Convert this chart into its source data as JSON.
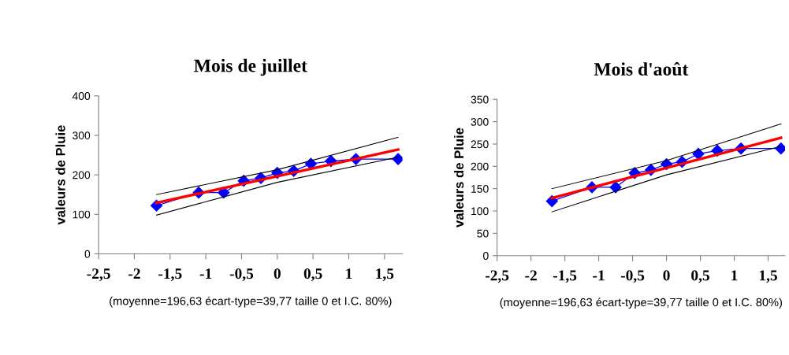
{
  "chart_data": [
    {
      "type": "line",
      "title": "Mois de juillet",
      "ylabel": "valeurs de Pluie",
      "xlim": [
        -2.5,
        1.75
      ],
      "xticks": [
        {
          "value": -2.5,
          "label": "-2,5"
        },
        -2,
        {
          "value": -1.5,
          "label": "-1,5"
        },
        -1,
        {
          "value": -0.5,
          "label": "-0,5"
        },
        0,
        {
          "value": 0.5,
          "label": "0,5"
        },
        1,
        {
          "value": 1.5,
          "label": "1,5"
        }
      ],
      "ylim": [
        0,
        400
      ],
      "yticks": [
        0,
        100,
        200,
        300,
        400
      ],
      "grid": false,
      "legend": false,
      "series": [
        {
          "x": [
            -1.69,
            -1.1,
            -0.75,
            -0.47,
            -0.23,
            0,
            0.23,
            0.47,
            0.75,
            1.1,
            1.69
          ],
          "values": [
            122,
            155,
            155,
            185,
            192,
            205,
            210,
            228,
            235,
            240,
            240
          ],
          "color": "#0000ff",
          "marker": "diamond",
          "line_style": "solid"
        },
        {
          "x": [
            -1.69,
            1.69
          ],
          "values": [
            129,
            264
          ],
          "color": "#ff0000",
          "marker": "none",
          "line_style": "solid"
        },
        {
          "x": [
            -1.69,
            0,
            1.69
          ],
          "values": [
            150,
            213,
            295
          ],
          "color": "#000000",
          "marker": "none",
          "line_style": "solid"
        },
        {
          "x": [
            -1.69,
            0,
            1.69
          ],
          "values": [
            98,
            181,
            245
          ],
          "color": "#000000",
          "marker": "none",
          "line_style": "solid"
        }
      ],
      "annotations": [
        "(moyenne=196,63 écart-type=39,77 taille 0 et I.C. 80%)"
      ]
    },
    {
      "type": "line",
      "title": "Mois d'août",
      "ylabel": "valeurs de Pluie",
      "xlim": [
        -2.5,
        1.75
      ],
      "xticks": [
        {
          "value": -2.5,
          "label": "-2,5"
        },
        -2,
        {
          "value": -1.5,
          "label": "-1,5"
        },
        -1,
        {
          "value": -0.5,
          "label": "-0,5"
        },
        0,
        {
          "value": 0.5,
          "label": "0,5"
        },
        1,
        {
          "value": 1.5,
          "label": "1,5"
        }
      ],
      "ylim": [
        0,
        350
      ],
      "yticks": [
        0,
        50,
        100,
        150,
        200,
        250,
        300,
        350
      ],
      "grid": false,
      "legend": false,
      "series": [
        {
          "x": [
            -1.69,
            -1.1,
            -0.75,
            -0.47,
            -0.23,
            0,
            0.23,
            0.47,
            0.75,
            1.1,
            1.69
          ],
          "values": [
            122,
            153,
            153,
            185,
            192,
            205,
            210,
            228,
            235,
            240,
            240
          ],
          "color": "#0000ff",
          "marker": "diamond",
          "line_style": "solid"
        },
        {
          "x": [
            -1.69,
            1.69
          ],
          "values": [
            129,
            264
          ],
          "color": "#ff0000",
          "marker": "none",
          "line_style": "solid"
        },
        {
          "x": [
            -1.69,
            0,
            1.69
          ],
          "values": [
            150,
            213,
            295
          ],
          "color": "#000000",
          "marker": "none",
          "line_style": "solid"
        },
        {
          "x": [
            -1.69,
            0,
            1.69
          ],
          "values": [
            98,
            181,
            245
          ],
          "color": "#000000",
          "marker": "none",
          "line_style": "solid"
        }
      ],
      "annotations": [
        "(moyenne=196,63 écart-type=39,77 taille 0 et I.C. 80%)"
      ]
    }
  ]
}
